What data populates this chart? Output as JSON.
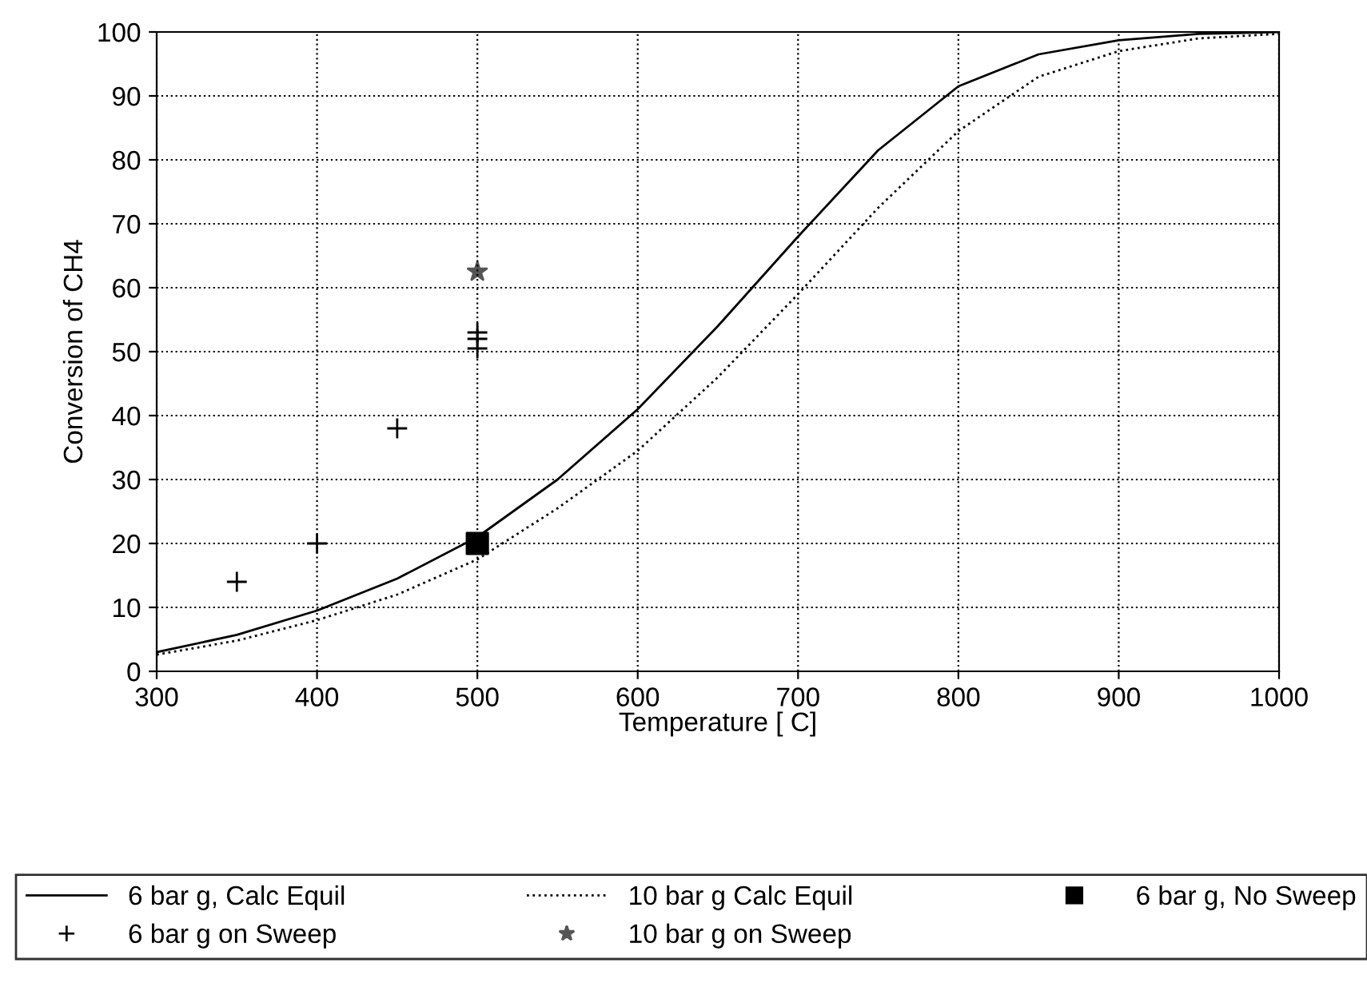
{
  "chart_data": {
    "type": "line",
    "xlabel": "Temperature [ C]",
    "ylabel": "Conversion of CH4",
    "xlim": [
      300,
      1000
    ],
    "xticks": [
      300,
      400,
      500,
      600,
      700,
      800,
      900,
      1000
    ],
    "ylim": [
      0,
      100
    ],
    "yticks": [
      0,
      10,
      20,
      30,
      40,
      50,
      60,
      70,
      80,
      90,
      100
    ],
    "grid": true,
    "legend": "bottom",
    "series": [
      {
        "name": "6 bar g, Calc Equil",
        "line_style": "solid",
        "marker": "none",
        "color": "#000000",
        "x": [
          300,
          350,
          400,
          450,
          500,
          550,
          600,
          650,
          700,
          750,
          800,
          850,
          900,
          950,
          1000
        ],
        "values": [
          3,
          5.7,
          9.5,
          14.5,
          21,
          30,
          41,
          54,
          68,
          81.5,
          91.5,
          96.5,
          98.7,
          99.7,
          100
        ]
      },
      {
        "name": "10 bar g Calc Equil",
        "line_style": "dotted",
        "marker": "none",
        "color": "#000000",
        "x": [
          300,
          350,
          400,
          450,
          500,
          550,
          600,
          650,
          700,
          750,
          800,
          850,
          900,
          950,
          1000
        ],
        "values": [
          2.6,
          4.8,
          8,
          12,
          17.5,
          25.5,
          34.5,
          46,
          59,
          72.5,
          84.5,
          93,
          97,
          99,
          99.7
        ]
      },
      {
        "name": "6 bar g, No Sweep",
        "type": "scatter",
        "marker": "square",
        "color": "#000000",
        "x": [
          500
        ],
        "values": [
          20
        ]
      },
      {
        "name": "6 bar g on Sweep",
        "type": "scatter",
        "marker": "cross",
        "color": "#000000",
        "x": [
          350,
          400,
          450,
          500,
          500,
          500
        ],
        "values": [
          14,
          20,
          38,
          53,
          52,
          50.5
        ]
      },
      {
        "name": "10 bar g on Sweep",
        "type": "scatter",
        "marker": "star",
        "color": "#555555",
        "x": [
          500
        ],
        "values": [
          62.5
        ]
      }
    ]
  }
}
